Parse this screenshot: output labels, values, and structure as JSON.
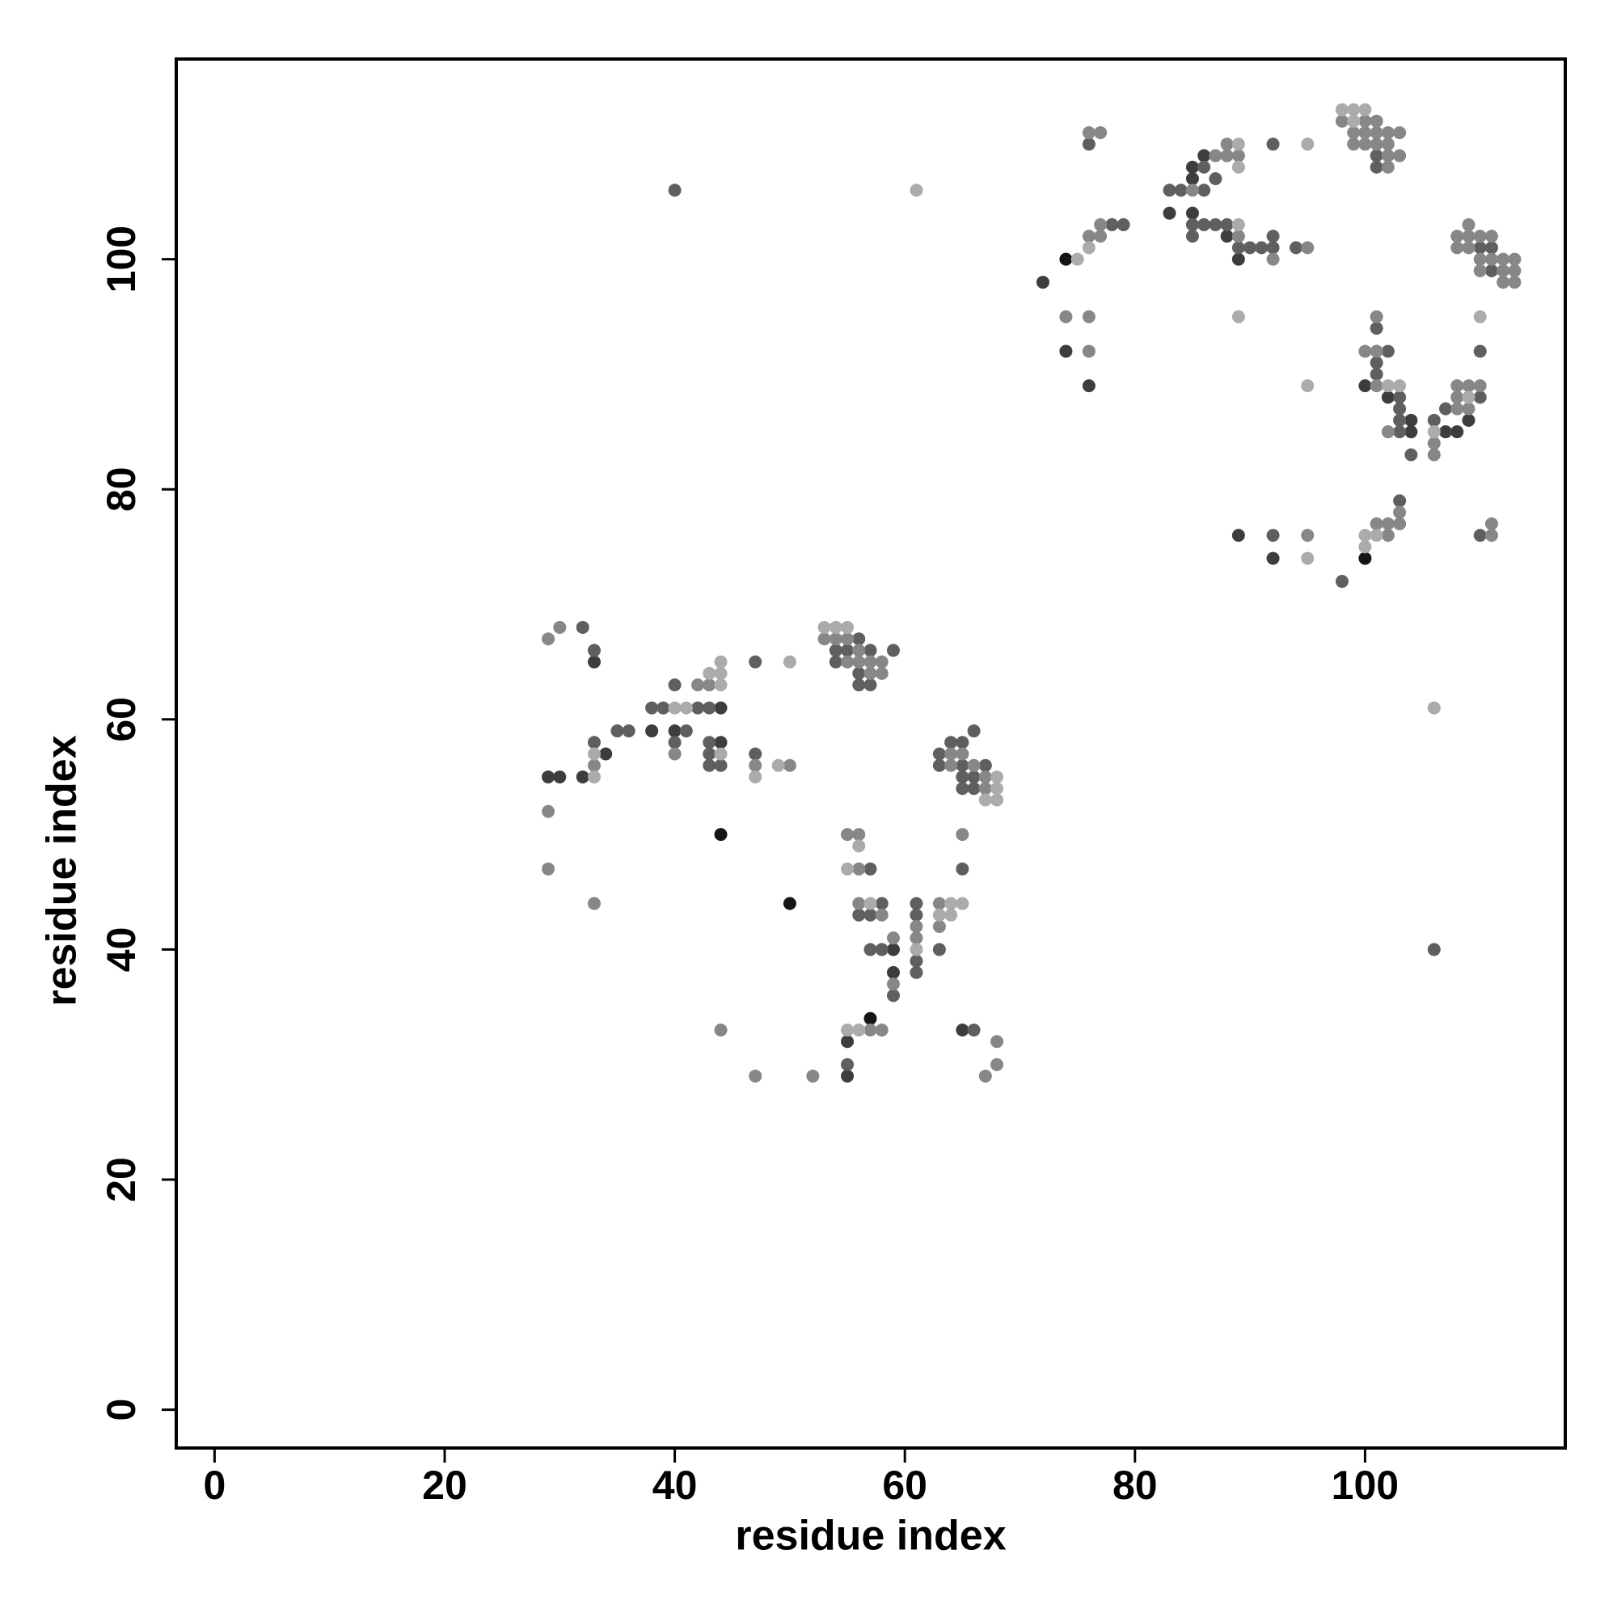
{
  "chart_data": {
    "type": "scatter",
    "x_label": "residue index",
    "y_label": "residue index",
    "xlim": [
      -3.33,
      117.4
    ],
    "ylim": [
      -3.33,
      117.4
    ],
    "xticks": [
      0,
      20,
      40,
      60,
      80,
      100
    ],
    "yticks": [
      0,
      20,
      40,
      60,
      80,
      100
    ],
    "series": [
      {
        "color": "#151515",
        "x": [
          74,
          100,
          44,
          50,
          57
        ],
        "y": [
          100,
          74,
          50,
          44,
          34
        ]
      },
      {
        "color": "#3d3d3d",
        "x": [
          33,
          29,
          30,
          32,
          34,
          38,
          40,
          44,
          44,
          59,
          59,
          55,
          55,
          65,
          72,
          74,
          76,
          83,
          85,
          88,
          89,
          85,
          85,
          86,
          100,
          102,
          104,
          104,
          107,
          108,
          109,
          89,
          92
        ],
        "y": [
          65,
          55,
          55,
          55,
          57,
          59,
          59,
          61,
          58,
          40,
          38,
          32,
          29,
          33,
          98,
          92,
          89,
          104,
          104,
          102,
          100,
          108,
          107,
          109,
          89,
          88,
          86,
          85,
          85,
          85,
          86,
          76,
          74
        ]
      },
      {
        "color": "#5f5f5f",
        "x": [
          32,
          33,
          33,
          35,
          36,
          38,
          39,
          42,
          43,
          40,
          40,
          41,
          43,
          43,
          43,
          44,
          47,
          47,
          56,
          54,
          55,
          57,
          54,
          56,
          56,
          57,
          59,
          57,
          58,
          56,
          57,
          57,
          58,
          59,
          61,
          61,
          61,
          61,
          63,
          65,
          55,
          66,
          63,
          63,
          64,
          65,
          65,
          65,
          66,
          66,
          66,
          67,
          65,
          40,
          106,
          76,
          78,
          79,
          83,
          84,
          86,
          85,
          85,
          86,
          87,
          88,
          89,
          90,
          91,
          92,
          92,
          94,
          86,
          87,
          92,
          101,
          101,
          110,
          111,
          111,
          110,
          101,
          102,
          101,
          101,
          103,
          103,
          103,
          103,
          104,
          106,
          107,
          110,
          92,
          98,
          103,
          110
        ],
        "y": [
          68,
          66,
          58,
          59,
          59,
          61,
          61,
          61,
          61,
          63,
          58,
          59,
          58,
          57,
          56,
          56,
          65,
          57,
          67,
          66,
          66,
          66,
          65,
          64,
          63,
          63,
          66,
          47,
          44,
          43,
          43,
          40,
          40,
          36,
          44,
          43,
          39,
          38,
          40,
          47,
          30,
          33,
          57,
          56,
          58,
          58,
          56,
          55,
          59,
          55,
          54,
          56,
          54,
          106,
          40,
          110,
          103,
          103,
          106,
          106,
          106,
          103,
          102,
          103,
          103,
          103,
          101,
          101,
          101,
          101,
          102,
          101,
          108,
          107,
          110,
          109,
          108,
          101,
          101,
          99,
          92,
          94,
          92,
          91,
          90,
          88,
          87,
          86,
          85,
          83,
          86,
          87,
          88,
          76,
          72,
          79,
          76
        ]
      },
      {
        "color": "#878787",
        "x": [
          29,
          30,
          33,
          29,
          29,
          33,
          40,
          42,
          43,
          47,
          50,
          44,
          47,
          52,
          53,
          54,
          55,
          56,
          55,
          56,
          57,
          58,
          57,
          58,
          55,
          56,
          56,
          56,
          58,
          59,
          59,
          61,
          61,
          63,
          63,
          65,
          57,
          58,
          68,
          68,
          67,
          64,
          64,
          65,
          66,
          67,
          67,
          76,
          77,
          76,
          77,
          77,
          74,
          76,
          76,
          85,
          89,
          92,
          95,
          87,
          88,
          88,
          89,
          98,
          100,
          101,
          99,
          100,
          101,
          102,
          103,
          99,
          100,
          101,
          102,
          102,
          103,
          102,
          108,
          109,
          109,
          110,
          111,
          108,
          109,
          110,
          111,
          112,
          113,
          110,
          112,
          113,
          112,
          113,
          101,
          100,
          101,
          101,
          102,
          106,
          106,
          108,
          108,
          108,
          109,
          109,
          110,
          95,
          101,
          102,
          102,
          103,
          103,
          111,
          111
        ],
        "y": [
          67,
          68,
          56,
          52,
          47,
          44,
          57,
          63,
          63,
          56,
          56,
          33,
          29,
          29,
          67,
          67,
          67,
          66,
          65,
          65,
          65,
          65,
          64,
          64,
          50,
          50,
          47,
          44,
          43,
          41,
          37,
          42,
          41,
          44,
          42,
          50,
          33,
          33,
          32,
          30,
          29,
          57,
          56,
          57,
          56,
          55,
          54,
          111,
          111,
          102,
          102,
          103,
          95,
          95,
          92,
          106,
          102,
          100,
          101,
          109,
          110,
          109,
          109,
          112,
          112,
          112,
          111,
          111,
          111,
          111,
          111,
          110,
          110,
          110,
          110,
          109,
          109,
          108,
          102,
          103,
          102,
          102,
          102,
          101,
          101,
          100,
          100,
          100,
          100,
          99,
          99,
          99,
          98,
          98,
          95,
          92,
          92,
          89,
          85,
          84,
          83,
          87,
          88,
          89,
          89,
          87,
          89,
          76,
          77,
          77,
          76,
          78,
          77,
          77,
          76
        ]
      },
      {
        "color": "#ababab",
        "x": [
          33,
          33,
          40,
          41,
          43,
          44,
          44,
          44,
          44,
          47,
          49,
          50,
          53,
          54,
          55,
          56,
          55,
          57,
          61,
          64,
          65,
          63,
          64,
          55,
          56,
          68,
          68,
          68,
          67,
          61,
          106,
          75,
          76,
          89,
          89,
          89,
          95,
          89,
          95,
          98,
          99,
          100,
          99,
          110,
          102,
          103,
          106,
          109,
          95,
          100,
          100,
          101
        ],
        "y": [
          55,
          57,
          61,
          61,
          64,
          63,
          64,
          65,
          57,
          55,
          56,
          65,
          68,
          68,
          68,
          49,
          47,
          44,
          40,
          44,
          44,
          43,
          43,
          33,
          33,
          55,
          54,
          53,
          53,
          106,
          61,
          100,
          101,
          103,
          108,
          110,
          110,
          95,
          89,
          113,
          113,
          113,
          112,
          95,
          89,
          89,
          85,
          88,
          74,
          76,
          75,
          76
        ]
      }
    ]
  }
}
